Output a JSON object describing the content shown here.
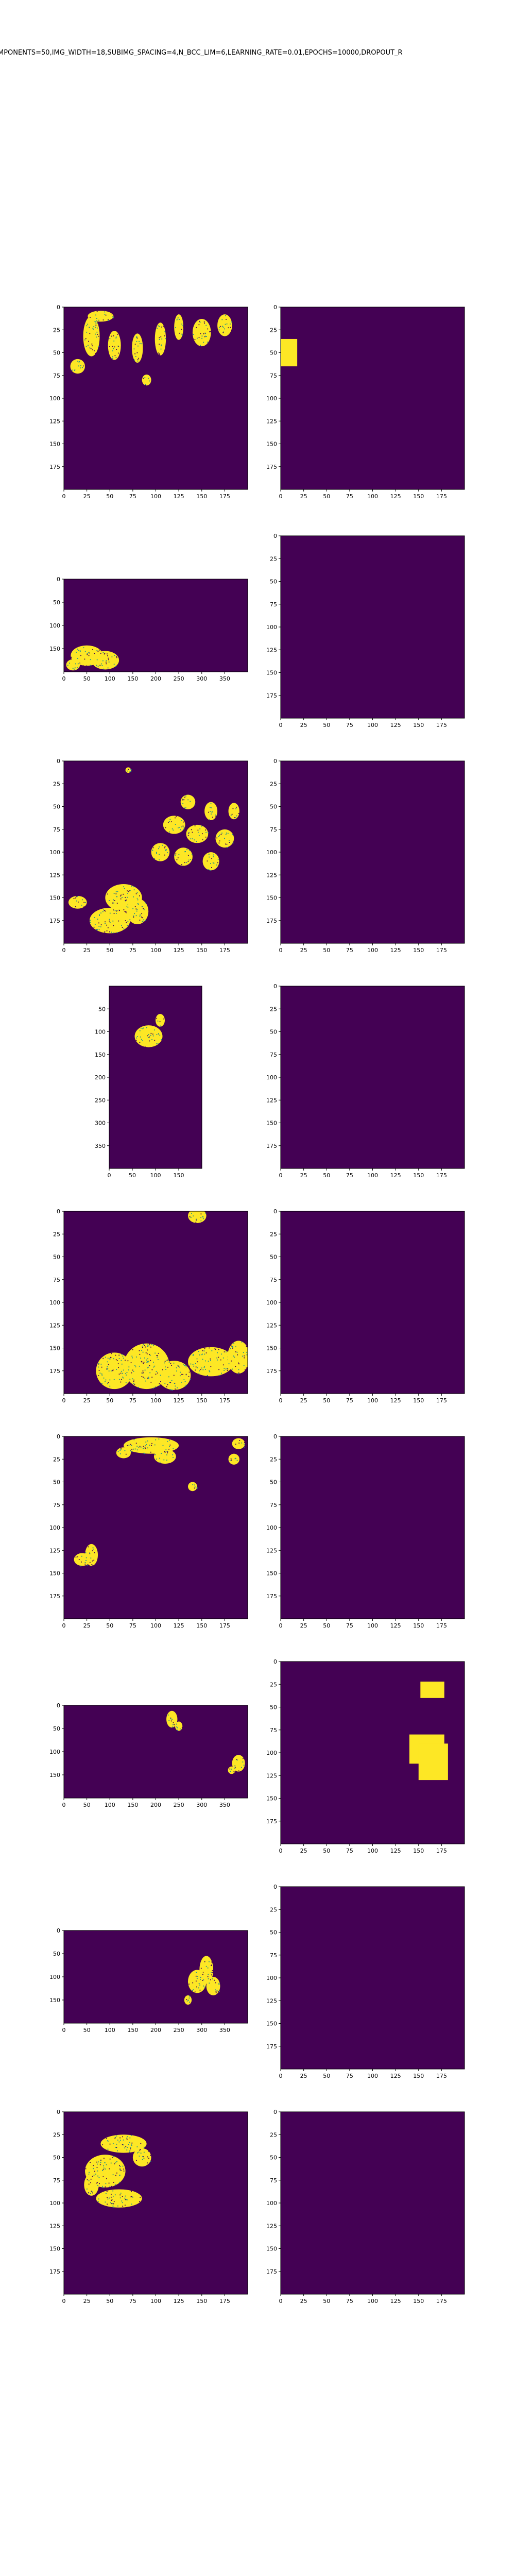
{
  "figure": {
    "title": "MPONENTS=50,IMG_WIDTH=18,SUBIMG_SPACING=4,N_BCC_LIM=6,LEARNING_RATE=0.01,EPOCHS=10000,DROPOUT_R"
  },
  "colors": {
    "background": "#440154",
    "foreground": "#fde725",
    "edge": "#21918c"
  },
  "chart_data": [
    {
      "type": "heatmap",
      "panel": "input",
      "row": 1,
      "x_range": [
        0,
        200
      ],
      "y_range": [
        0,
        200
      ],
      "xticks": [
        0,
        25,
        50,
        75,
        100,
        125,
        150,
        175
      ],
      "yticks": [
        0,
        25,
        50,
        75,
        100,
        125,
        150,
        175
      ],
      "regions": [
        {
          "shape": "ellipse",
          "cx": 30,
          "cy": 32,
          "rx": 9,
          "ry": 22
        },
        {
          "shape": "ellipse",
          "cx": 55,
          "cy": 42,
          "rx": 7,
          "ry": 16
        },
        {
          "shape": "ellipse",
          "cx": 80,
          "cy": 45,
          "rx": 6,
          "ry": 16
        },
        {
          "shape": "ellipse",
          "cx": 105,
          "cy": 35,
          "rx": 6,
          "ry": 18
        },
        {
          "shape": "ellipse",
          "cx": 125,
          "cy": 22,
          "rx": 5,
          "ry": 14
        },
        {
          "shape": "ellipse",
          "cx": 150,
          "cy": 28,
          "rx": 10,
          "ry": 15
        },
        {
          "shape": "ellipse",
          "cx": 175,
          "cy": 20,
          "rx": 8,
          "ry": 12
        },
        {
          "shape": "ellipse",
          "cx": 40,
          "cy": 10,
          "rx": 14,
          "ry": 6
        },
        {
          "shape": "ellipse",
          "cx": 15,
          "cy": 65,
          "rx": 8,
          "ry": 8
        },
        {
          "shape": "ellipse",
          "cx": 90,
          "cy": 80,
          "rx": 5,
          "ry": 6
        }
      ]
    },
    {
      "type": "heatmap",
      "panel": "output",
      "row": 1,
      "x_range": [
        0,
        200
      ],
      "y_range": [
        0,
        200
      ],
      "xticks": [
        0,
        25,
        50,
        75,
        100,
        125,
        150,
        175
      ],
      "yticks": [
        0,
        25,
        50,
        75,
        100,
        125,
        150,
        175
      ],
      "regions": [
        {
          "shape": "rect",
          "x0": 0,
          "y0": 35,
          "x1": 18,
          "y1": 65
        }
      ]
    },
    {
      "type": "heatmap",
      "panel": "input",
      "row": 2,
      "x_range": [
        0,
        400
      ],
      "y_range": [
        0,
        200
      ],
      "xticks": [
        0,
        50,
        100,
        150,
        200,
        250,
        300,
        350
      ],
      "yticks": [
        0,
        50,
        100,
        150
      ],
      "regions": [
        {
          "shape": "ellipse",
          "cx": 50,
          "cy": 165,
          "rx": 35,
          "ry": 22
        },
        {
          "shape": "ellipse",
          "cx": 90,
          "cy": 175,
          "rx": 30,
          "ry": 20
        },
        {
          "shape": "ellipse",
          "cx": 20,
          "cy": 185,
          "rx": 15,
          "ry": 12
        }
      ]
    },
    {
      "type": "heatmap",
      "panel": "output",
      "row": 2,
      "x_range": [
        0,
        200
      ],
      "y_range": [
        0,
        200
      ],
      "xticks": [
        0,
        25,
        50,
        75,
        100,
        125,
        150,
        175
      ],
      "yticks": [
        0,
        25,
        50,
        75,
        100,
        125,
        150,
        175
      ],
      "regions": []
    },
    {
      "type": "heatmap",
      "panel": "input",
      "row": 3,
      "x_range": [
        0,
        200
      ],
      "y_range": [
        0,
        200
      ],
      "xticks": [
        0,
        25,
        50,
        75,
        100,
        125,
        150,
        175
      ],
      "yticks": [
        0,
        25,
        50,
        75,
        100,
        125,
        150,
        175
      ],
      "regions": [
        {
          "shape": "ellipse",
          "cx": 135,
          "cy": 45,
          "rx": 8,
          "ry": 8
        },
        {
          "shape": "ellipse",
          "cx": 160,
          "cy": 55,
          "rx": 7,
          "ry": 10
        },
        {
          "shape": "ellipse",
          "cx": 185,
          "cy": 55,
          "rx": 6,
          "ry": 9
        },
        {
          "shape": "ellipse",
          "cx": 120,
          "cy": 70,
          "rx": 12,
          "ry": 10
        },
        {
          "shape": "ellipse",
          "cx": 145,
          "cy": 80,
          "rx": 12,
          "ry": 10
        },
        {
          "shape": "ellipse",
          "cx": 175,
          "cy": 85,
          "rx": 10,
          "ry": 10
        },
        {
          "shape": "ellipse",
          "cx": 105,
          "cy": 100,
          "rx": 10,
          "ry": 10
        },
        {
          "shape": "ellipse",
          "cx": 130,
          "cy": 105,
          "rx": 10,
          "ry": 10
        },
        {
          "shape": "ellipse",
          "cx": 160,
          "cy": 110,
          "rx": 9,
          "ry": 10
        },
        {
          "shape": "ellipse",
          "cx": 65,
          "cy": 150,
          "rx": 20,
          "ry": 15
        },
        {
          "shape": "ellipse",
          "cx": 50,
          "cy": 175,
          "rx": 22,
          "ry": 14
        },
        {
          "shape": "ellipse",
          "cx": 80,
          "cy": 165,
          "rx": 12,
          "ry": 14
        },
        {
          "shape": "ellipse",
          "cx": 15,
          "cy": 155,
          "rx": 10,
          "ry": 7
        },
        {
          "shape": "ellipse",
          "cx": 70,
          "cy": 10,
          "rx": 3,
          "ry": 3
        }
      ]
    },
    {
      "type": "heatmap",
      "panel": "output",
      "row": 3,
      "x_range": [
        0,
        200
      ],
      "y_range": [
        0,
        200
      ],
      "xticks": [
        0,
        25,
        50,
        75,
        100,
        125,
        150,
        175
      ],
      "yticks": [
        0,
        25,
        50,
        75,
        100,
        125,
        150,
        175
      ],
      "regions": []
    },
    {
      "type": "heatmap",
      "panel": "input",
      "row": 4,
      "x_range": [
        0,
        200
      ],
      "y_range": [
        0,
        400
      ],
      "xticks": [
        0,
        50,
        100,
        150
      ],
      "yticks": [
        50,
        100,
        150,
        200,
        250,
        300,
        350
      ],
      "regions": [
        {
          "shape": "ellipse",
          "cx": 85,
          "cy": 110,
          "rx": 30,
          "ry": 24
        },
        {
          "shape": "ellipse",
          "cx": 110,
          "cy": 75,
          "rx": 10,
          "ry": 14
        }
      ]
    },
    {
      "type": "heatmap",
      "panel": "output",
      "row": 4,
      "x_range": [
        0,
        200
      ],
      "y_range": [
        0,
        200
      ],
      "xticks": [
        0,
        25,
        50,
        75,
        100,
        125,
        150,
        175
      ],
      "yticks": [
        0,
        25,
        50,
        75,
        100,
        125,
        150,
        175
      ],
      "regions": []
    },
    {
      "type": "heatmap",
      "panel": "input",
      "row": 5,
      "x_range": [
        0,
        200
      ],
      "y_range": [
        0,
        200
      ],
      "xticks": [
        0,
        25,
        50,
        75,
        100,
        125,
        150,
        175
      ],
      "yticks": [
        0,
        25,
        50,
        75,
        100,
        125,
        150,
        175
      ],
      "regions": [
        {
          "shape": "ellipse",
          "cx": 145,
          "cy": 5,
          "rx": 10,
          "ry": 8
        },
        {
          "shape": "ellipse",
          "cx": 55,
          "cy": 175,
          "rx": 20,
          "ry": 20
        },
        {
          "shape": "ellipse",
          "cx": 90,
          "cy": 170,
          "rx": 25,
          "ry": 25
        },
        {
          "shape": "ellipse",
          "cx": 120,
          "cy": 180,
          "rx": 18,
          "ry": 16
        },
        {
          "shape": "ellipse",
          "cx": 160,
          "cy": 165,
          "rx": 25,
          "ry": 16
        },
        {
          "shape": "ellipse",
          "cx": 190,
          "cy": 160,
          "rx": 12,
          "ry": 18
        }
      ]
    },
    {
      "type": "heatmap",
      "panel": "output",
      "row": 5,
      "x_range": [
        0,
        200
      ],
      "y_range": [
        0,
        200
      ],
      "xticks": [
        0,
        25,
        50,
        75,
        100,
        125,
        150,
        175
      ],
      "yticks": [
        0,
        25,
        50,
        75,
        100,
        125,
        150,
        175
      ],
      "regions": []
    },
    {
      "type": "heatmap",
      "panel": "input",
      "row": 6,
      "x_range": [
        0,
        200
      ],
      "y_range": [
        0,
        200
      ],
      "xticks": [
        0,
        25,
        50,
        75,
        100,
        125,
        150,
        175
      ],
      "yticks": [
        0,
        25,
        50,
        75,
        100,
        125,
        150,
        175
      ],
      "regions": [
        {
          "shape": "ellipse",
          "cx": 95,
          "cy": 10,
          "rx": 30,
          "ry": 9
        },
        {
          "shape": "ellipse",
          "cx": 110,
          "cy": 22,
          "rx": 12,
          "ry": 8
        },
        {
          "shape": "ellipse",
          "cx": 65,
          "cy": 18,
          "rx": 8,
          "ry": 6
        },
        {
          "shape": "ellipse",
          "cx": 190,
          "cy": 8,
          "rx": 7,
          "ry": 6
        },
        {
          "shape": "ellipse",
          "cx": 185,
          "cy": 25,
          "rx": 6,
          "ry": 6
        },
        {
          "shape": "ellipse",
          "cx": 140,
          "cy": 55,
          "rx": 5,
          "ry": 5
        },
        {
          "shape": "ellipse",
          "cx": 30,
          "cy": 130,
          "rx": 7,
          "ry": 12
        },
        {
          "shape": "ellipse",
          "cx": 20,
          "cy": 135,
          "rx": 9,
          "ry": 7
        }
      ]
    },
    {
      "type": "heatmap",
      "panel": "output",
      "row": 6,
      "x_range": [
        0,
        200
      ],
      "y_range": [
        0,
        200
      ],
      "xticks": [
        0,
        25,
        50,
        75,
        100,
        125,
        150,
        175
      ],
      "yticks": [
        0,
        25,
        50,
        75,
        100,
        125,
        150,
        175
      ],
      "regions": []
    },
    {
      "type": "heatmap",
      "panel": "input",
      "row": 7,
      "x_range": [
        0,
        400
      ],
      "y_range": [
        0,
        200
      ],
      "xticks": [
        0,
        50,
        100,
        150,
        200,
        250,
        300,
        350
      ],
      "yticks": [
        0,
        50,
        100,
        150
      ],
      "regions": [
        {
          "shape": "ellipse",
          "cx": 235,
          "cy": 30,
          "rx": 12,
          "ry": 18
        },
        {
          "shape": "ellipse",
          "cx": 250,
          "cy": 45,
          "rx": 8,
          "ry": 10
        },
        {
          "shape": "ellipse",
          "cx": 380,
          "cy": 125,
          "rx": 14,
          "ry": 18
        },
        {
          "shape": "ellipse",
          "cx": 365,
          "cy": 140,
          "rx": 8,
          "ry": 8
        }
      ]
    },
    {
      "type": "heatmap",
      "panel": "output",
      "row": 7,
      "x_range": [
        0,
        200
      ],
      "y_range": [
        0,
        200
      ],
      "xticks": [
        0,
        25,
        50,
        75,
        100,
        125,
        150,
        175
      ],
      "yticks": [
        0,
        25,
        50,
        75,
        100,
        125,
        150,
        175
      ],
      "regions": [
        {
          "shape": "rect",
          "x0": 152,
          "y0": 22,
          "x1": 178,
          "y1": 40
        },
        {
          "shape": "rect",
          "x0": 140,
          "y0": 80,
          "x1": 178,
          "y1": 112
        },
        {
          "shape": "rect",
          "x0": 150,
          "y0": 90,
          "x1": 182,
          "y1": 130
        }
      ]
    },
    {
      "type": "heatmap",
      "panel": "input",
      "row": 8,
      "x_range": [
        0,
        400
      ],
      "y_range": [
        0,
        200
      ],
      "xticks": [
        0,
        50,
        100,
        150,
        200,
        250,
        300,
        350
      ],
      "yticks": [
        0,
        50,
        100,
        150
      ],
      "regions": [
        {
          "shape": "ellipse",
          "cx": 310,
          "cy": 85,
          "rx": 15,
          "ry": 30
        },
        {
          "shape": "ellipse",
          "cx": 290,
          "cy": 110,
          "rx": 20,
          "ry": 25
        },
        {
          "shape": "ellipse",
          "cx": 325,
          "cy": 120,
          "rx": 15,
          "ry": 20
        },
        {
          "shape": "ellipse",
          "cx": 270,
          "cy": 150,
          "rx": 8,
          "ry": 10
        }
      ]
    },
    {
      "type": "heatmap",
      "panel": "output",
      "row": 8,
      "x_range": [
        0,
        200
      ],
      "y_range": [
        0,
        200
      ],
      "xticks": [
        0,
        25,
        50,
        75,
        100,
        125,
        150,
        175
      ],
      "yticks": [
        0,
        25,
        50,
        75,
        100,
        125,
        150,
        175
      ],
      "regions": []
    },
    {
      "type": "heatmap",
      "panel": "input",
      "row": 9,
      "x_range": [
        0,
        200
      ],
      "y_range": [
        0,
        200
      ],
      "xticks": [
        0,
        25,
        50,
        75,
        100,
        125,
        150,
        175
      ],
      "yticks": [
        0,
        25,
        50,
        75,
        100,
        125,
        150,
        175
      ],
      "regions": [
        {
          "shape": "ellipse",
          "cx": 45,
          "cy": 65,
          "rx": 22,
          "ry": 18
        },
        {
          "shape": "ellipse",
          "cx": 60,
          "cy": 95,
          "rx": 25,
          "ry": 10
        },
        {
          "shape": "ellipse",
          "cx": 65,
          "cy": 35,
          "rx": 25,
          "ry": 10
        },
        {
          "shape": "ellipse",
          "cx": 85,
          "cy": 50,
          "rx": 10,
          "ry": 10
        },
        {
          "shape": "ellipse",
          "cx": 30,
          "cy": 80,
          "rx": 8,
          "ry": 12
        }
      ]
    },
    {
      "type": "heatmap",
      "panel": "output",
      "row": 9,
      "x_range": [
        0,
        200
      ],
      "y_range": [
        0,
        200
      ],
      "xticks": [
        0,
        25,
        50,
        75,
        100,
        125,
        150,
        175
      ],
      "yticks": [
        0,
        25,
        50,
        75,
        100,
        125,
        150,
        175
      ],
      "regions": []
    }
  ]
}
